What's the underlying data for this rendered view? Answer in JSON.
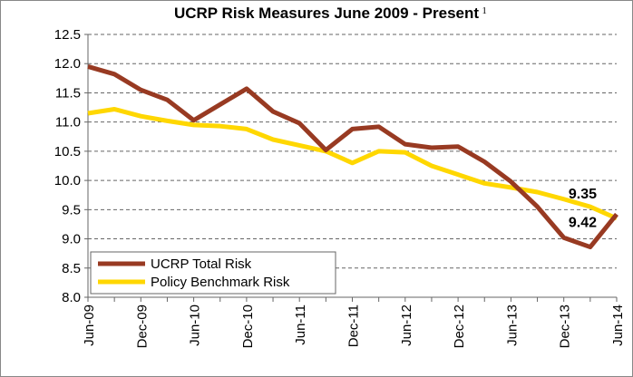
{
  "chart_data": {
    "type": "line",
    "title": "UCRP Risk Measures June 2009 - Present",
    "title_superscript": "1",
    "categories": [
      "Jun-09",
      null,
      "Dec-09",
      null,
      "Jun-10",
      null,
      "Dec-10",
      null,
      "Jun-11",
      null,
      "Dec-11",
      null,
      "Jun-12",
      null,
      "Dec-12",
      null,
      "Jun-13",
      null,
      "Dec-13",
      null,
      "Jun-14"
    ],
    "series": [
      {
        "name": "UCRP Total Risk",
        "color": "#983a22",
        "values": [
          11.95,
          11.82,
          11.55,
          11.38,
          11.03,
          11.3,
          11.57,
          11.18,
          10.98,
          10.52,
          10.88,
          10.92,
          10.62,
          10.56,
          10.58,
          10.32,
          9.98,
          9.55,
          9.02,
          8.86,
          9.42
        ]
      },
      {
        "name": "Policy Benchmark Risk",
        "color": "#ffd700",
        "values": [
          11.15,
          11.22,
          11.1,
          11.02,
          10.95,
          10.93,
          10.88,
          10.7,
          10.6,
          10.5,
          10.3,
          10.5,
          10.48,
          10.25,
          10.1,
          9.95,
          9.88,
          9.8,
          9.68,
          9.55,
          9.35
        ]
      }
    ],
    "ylim": [
      8.0,
      12.5
    ],
    "yticks": [
      {
        "value": 8,
        "label": "8.0"
      },
      8.5,
      {
        "value": 9,
        "label": "9.0"
      },
      9.5,
      {
        "value": 10,
        "label": "10.0"
      },
      10.5,
      {
        "value": 11,
        "label": "11.0"
      },
      11.5,
      {
        "value": 12,
        "label": "12.0"
      },
      12.5
    ],
    "grid": true,
    "legend": "lower left"
  }
}
